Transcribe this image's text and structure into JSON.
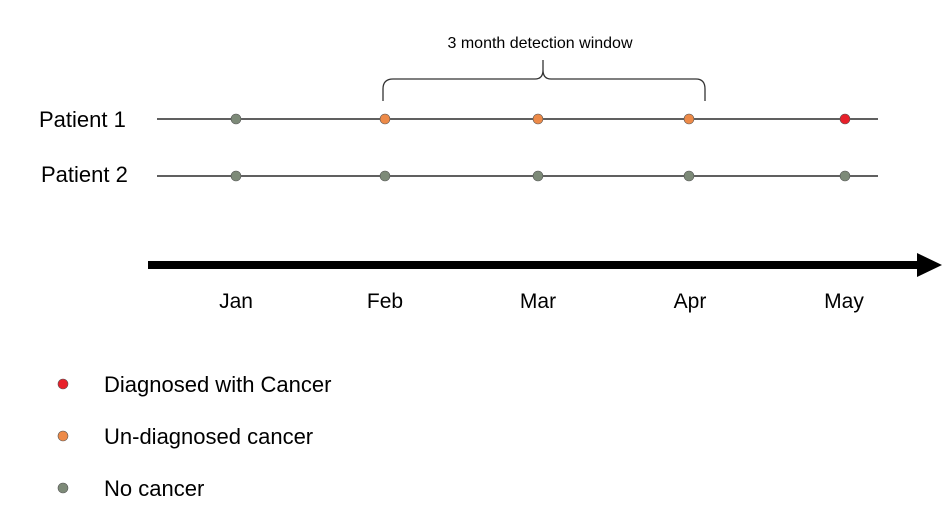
{
  "window": {
    "label": "3 month detection window"
  },
  "patients": [
    {
      "label": "Patient 1",
      "statuses": [
        "none",
        "undiagnosed",
        "undiagnosed",
        "undiagnosed",
        "diagnosed"
      ]
    },
    {
      "label": "Patient 2",
      "statuses": [
        "none",
        "none",
        "none",
        "none",
        "none"
      ]
    }
  ],
  "months": [
    "Jan",
    "Feb",
    "Mar",
    "Apr",
    "May"
  ],
  "legend": [
    {
      "key": "diagnosed",
      "label": "Diagnosed with Cancer",
      "color": "#e8202a"
    },
    {
      "key": "undiagnosed",
      "label": "Un-diagnosed cancer",
      "color": "#ed8a48"
    },
    {
      "key": "none",
      "label": "No cancer",
      "color": "#7d8a78"
    }
  ]
}
